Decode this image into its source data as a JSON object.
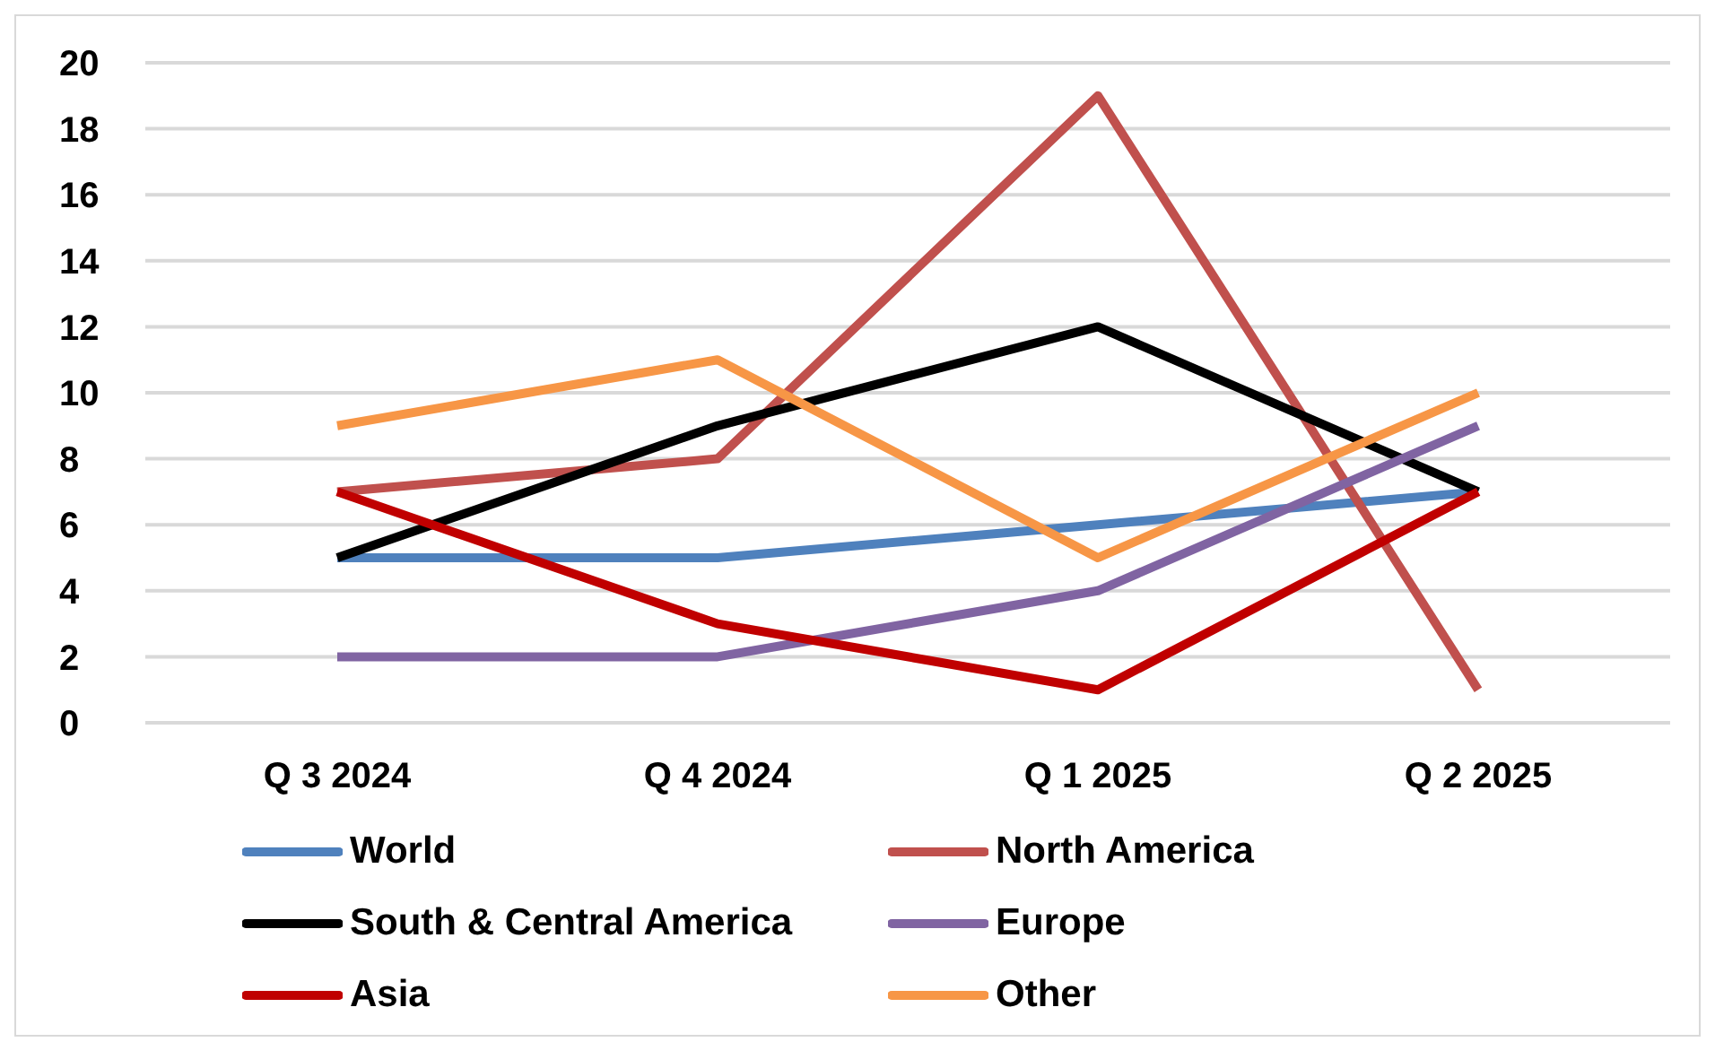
{
  "chart_data": {
    "type": "line",
    "categories": [
      "Q 3 2024",
      "Q 4 2024",
      "Q 1 2025",
      "Q 2 2025"
    ],
    "series": [
      {
        "name": "World",
        "color": "#4f81bd",
        "values": [
          5,
          5,
          6,
          7
        ]
      },
      {
        "name": "North America",
        "color": "#c0504d",
        "values": [
          7,
          8,
          19,
          1
        ]
      },
      {
        "name": "South & Central America",
        "color": "#000000",
        "values": [
          5,
          9,
          12,
          7
        ]
      },
      {
        "name": "Europe",
        "color": "#8064a2",
        "values": [
          2,
          2,
          4,
          9
        ]
      },
      {
        "name": "Asia",
        "color": "#c00000",
        "values": [
          7,
          3,
          1,
          7
        ]
      },
      {
        "name": "Other",
        "color": "#f79646",
        "values": [
          9,
          11,
          5,
          10
        ]
      }
    ],
    "ylim": [
      0,
      20
    ],
    "yticks": [
      0,
      2,
      4,
      6,
      8,
      10,
      12,
      14,
      16,
      18,
      20
    ],
    "grid": "y",
    "legend": "bottom",
    "marker": "none",
    "line_style": "solid"
  }
}
